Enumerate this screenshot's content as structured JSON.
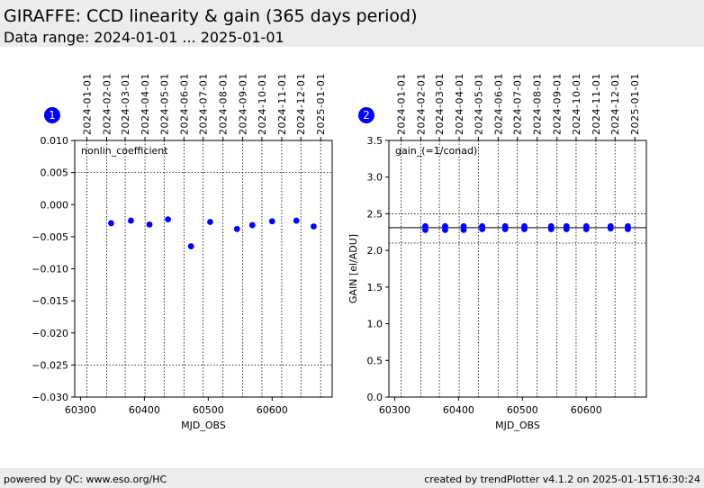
{
  "header": {
    "title": "GIRAFFE: CCD linearity & gain (365 days period)",
    "subtitle": "Data range: 2024-01-01 ... 2025-01-01"
  },
  "footer": {
    "left": "powered by QC: www.eso.org/HC",
    "right": "created by trendPlotter v4.1.2 on 2025-01-15T16:30:24"
  },
  "chart_data": [
    {
      "type": "scatter",
      "badge": "1",
      "label": "nonlin_coefficient",
      "xlabel": "MJD_OBS",
      "ylabel": "",
      "xlim": [
        60291,
        60694
      ],
      "ylim": [
        -0.03,
        0.01
      ],
      "xticks": [
        60300,
        60400,
        60500,
        60600
      ],
      "yticks": [
        0.01,
        0.005,
        0.0,
        -0.005,
        -0.01,
        -0.015,
        -0.02,
        -0.025,
        -0.03
      ],
      "ytick_labels": [
        "0.010",
        "0.005",
        "0.000",
        "−0.005",
        "−0.010",
        "−0.015",
        "−0.020",
        "−0.025",
        "−0.030"
      ],
      "thresholds": [
        0.005,
        -0.025
      ],
      "reference": null,
      "color": "#0000ff",
      "x": [
        60348,
        60379,
        60408,
        60437,
        60473,
        60503,
        60545,
        60569,
        60600,
        60638,
        60665
      ],
      "y": [
        -0.0029,
        -0.0025,
        -0.0031,
        -0.0023,
        -0.0065,
        -0.0027,
        -0.0038,
        -0.0032,
        -0.0026,
        -0.0025,
        -0.0034
      ]
    },
    {
      "type": "scatter",
      "badge": "2",
      "label": "gain_(=1/conad)",
      "xlabel": "MJD_OBS",
      "ylabel": "GAIN [el/ADU]",
      "xlim": [
        60291,
        60694
      ],
      "ylim": [
        0,
        3.5
      ],
      "xticks": [
        60300,
        60400,
        60500,
        60600
      ],
      "yticks": [
        3.5,
        3.0,
        2.5,
        2.0,
        1.5,
        1.0,
        0.5,
        0.0
      ],
      "ytick_labels": [
        "3.5",
        "3.0",
        "2.5",
        "2.0",
        "1.5",
        "1.0",
        "0.5",
        "0.0"
      ],
      "thresholds": [
        2.5,
        2.1
      ],
      "reference": 2.31,
      "color": "#0000ff",
      "x": [
        60348,
        60348,
        60379,
        60379,
        60408,
        60408,
        60437,
        60437,
        60473,
        60473,
        60503,
        60503,
        60545,
        60545,
        60569,
        60569,
        60600,
        60600,
        60638,
        60638,
        60665,
        60665
      ],
      "y": [
        2.28,
        2.33,
        2.28,
        2.33,
        2.28,
        2.33,
        2.29,
        2.33,
        2.29,
        2.33,
        2.29,
        2.33,
        2.29,
        2.33,
        2.29,
        2.33,
        2.29,
        2.33,
        2.3,
        2.33,
        2.29,
        2.33
      ]
    }
  ],
  "month_axis": {
    "labels": [
      "2024-01-01",
      "2024-02-01",
      "2024-03-01",
      "2024-04-01",
      "2024-05-01",
      "2024-06-01",
      "2024-07-01",
      "2024-08-01",
      "2024-09-01",
      "2024-10-01",
      "2024-11-01",
      "2024-12-01",
      "2025-01-01"
    ],
    "mjd": [
      60310,
      60341,
      60370,
      60401,
      60431,
      60462,
      60492,
      60523,
      60554,
      60584,
      60615,
      60645,
      60676
    ]
  }
}
